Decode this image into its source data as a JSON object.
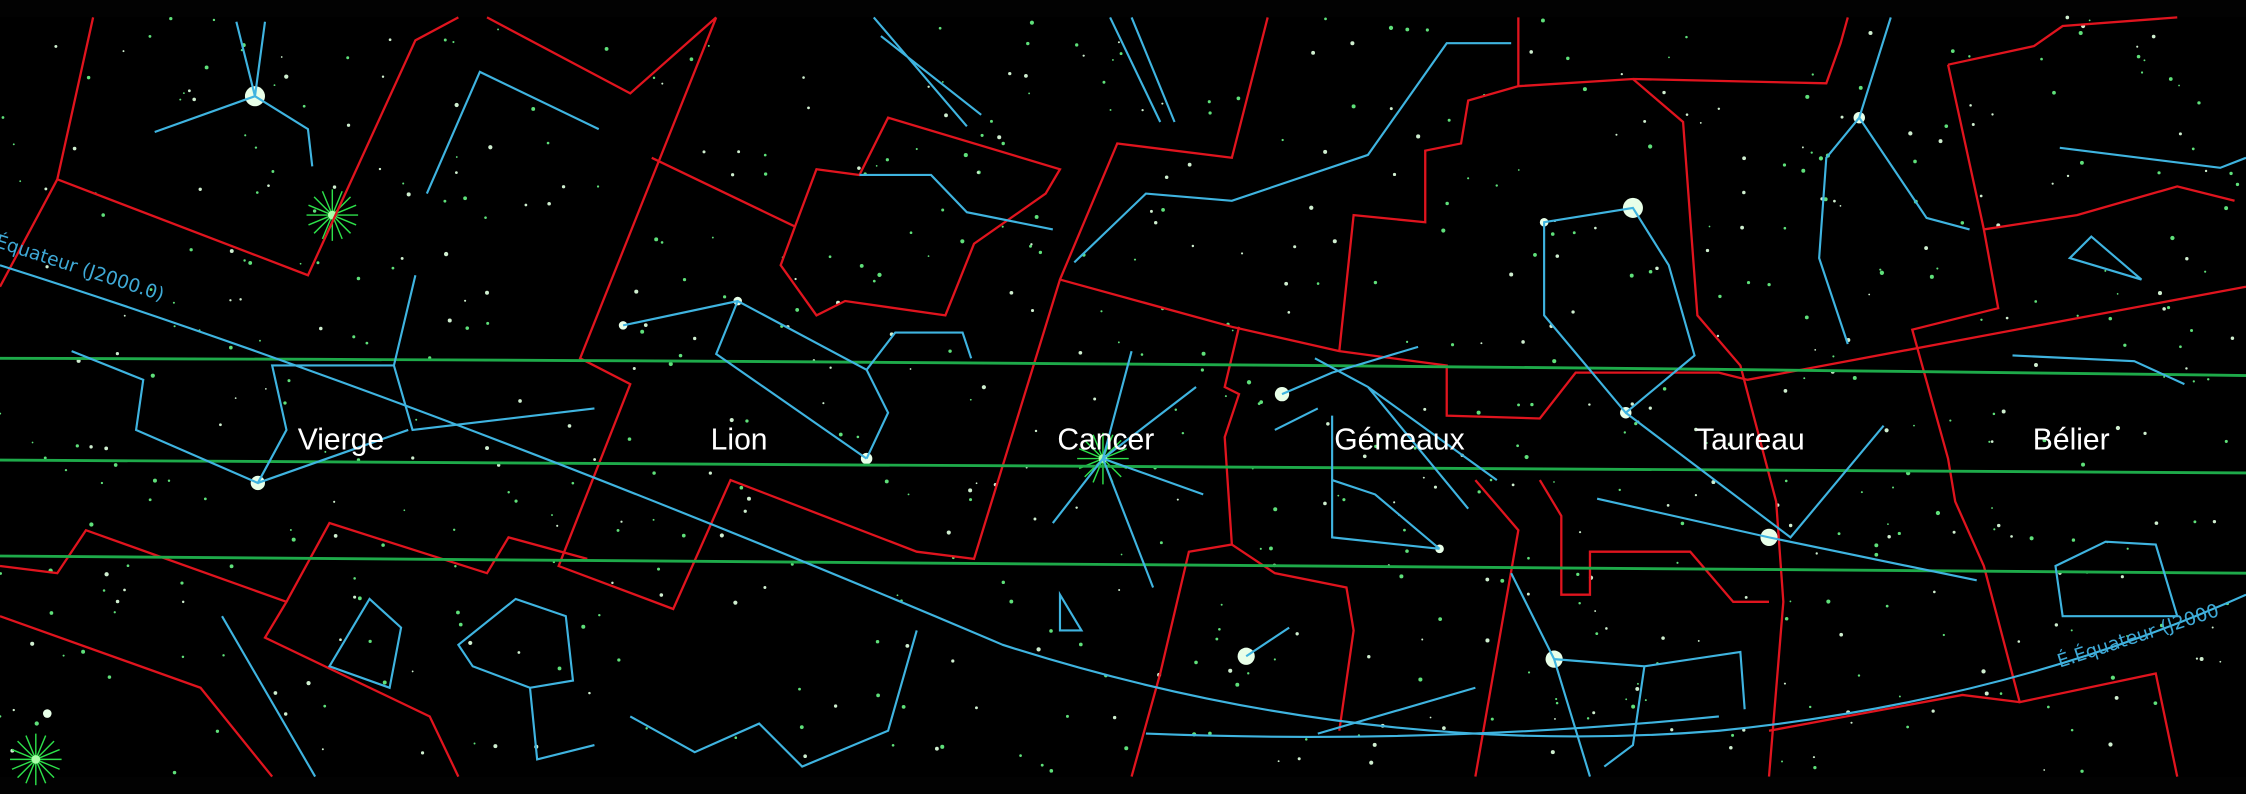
{
  "constellations": [
    "Vierge",
    "Lion",
    "Cancer",
    "Gémeaux",
    "Taureau",
    "Bélier"
  ],
  "equator_labels": [
    "Équateur (J2000.0)",
    "É.Équateur (J2000"
  ]
}
